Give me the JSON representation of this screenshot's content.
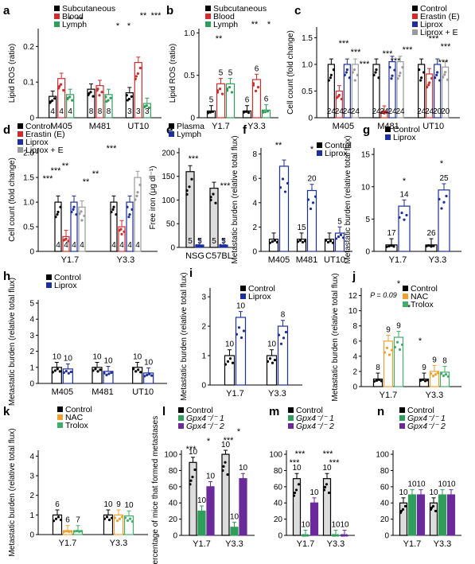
{
  "colors": {
    "black": "#000000",
    "red": "#d22b2b",
    "green": "#2f9e5a",
    "blue": "#1c2f9e",
    "gray": "#9a9a9a",
    "orange": "#f0a030",
    "lightgreen": "#3fae6a",
    "purple": "#6a2a9a",
    "lightfill": "#dddddd"
  },
  "chart_data": [
    {
      "panel": "a",
      "type": "bar",
      "ylabel": "Lipid ROS (ratio)",
      "yticks": [
        "0",
        "0.1",
        "0.2"
      ],
      "ylim": [
        0,
        0.25
      ],
      "categories": [
        "M405",
        "M481",
        "UT10"
      ],
      "series": [
        {
          "name": "Subcutaneous",
          "values": [
            0.06,
            0.08,
            0.07
          ],
          "n": [
            "4",
            "8",
            "3"
          ]
        },
        {
          "name": "Blood",
          "values": [
            0.11,
            0.09,
            0.155
          ],
          "n": [
            "4",
            "8",
            "3"
          ]
        },
        {
          "name": "Lymph",
          "values": [
            0.065,
            0.065,
            0.04
          ],
          "n": [
            "4",
            "8",
            "3"
          ]
        }
      ],
      "significance": [
        "*",
        "**",
        "*",
        "*",
        "**",
        "***"
      ]
    },
    {
      "panel": "b",
      "type": "bar",
      "ylabel": "Lipid ROS (ratio)",
      "yticks": [
        "0",
        "0.5",
        "1.0"
      ],
      "ylim": [
        0,
        1.05
      ],
      "categories": [
        "Y1.7",
        "Y3.3"
      ],
      "series": [
        {
          "name": "Subcutaneous",
          "values": [
            0.08,
            0.08
          ],
          "n": [
            "5",
            "6"
          ]
        },
        {
          "name": "Blood",
          "values": [
            0.4,
            0.45
          ],
          "n": [
            "5",
            "6"
          ]
        },
        {
          "name": "Lymph",
          "values": [
            0.4,
            0.09
          ],
          "n": [
            "5",
            "6"
          ]
        }
      ],
      "significance": [
        "**",
        "**",
        "*"
      ]
    },
    {
      "panel": "c",
      "type": "bar",
      "ylabel": "Cell count (fold change)",
      "yticks": [
        "0",
        "0.5",
        "1.0",
        "1.5"
      ],
      "ylim": [
        0,
        1.7
      ],
      "categories": [
        "M405",
        "M481",
        "UT10"
      ],
      "series": [
        {
          "name": "Control",
          "values": [
            1.0,
            1.0,
            1.0
          ],
          "n": [
            "24",
            "24",
            "24"
          ]
        },
        {
          "name": "Erastin (E)",
          "values": [
            0.5,
            0.12,
            0.82
          ],
          "n": [
            "24",
            "24",
            "24"
          ]
        },
        {
          "name": "Liprox",
          "values": [
            1.0,
            1.05,
            1.0
          ],
          "n": [
            "24",
            "24",
            "20"
          ]
        },
        {
          "name": "Liprox + E",
          "values": [
            1.0,
            1.05,
            0.95
          ],
          "n": [
            "24",
            "24",
            "20"
          ]
        }
      ],
      "significance": [
        "***",
        "***",
        "***",
        "***",
        "***",
        "***",
        "***",
        "***",
        "***"
      ]
    },
    {
      "panel": "d",
      "type": "bar",
      "ylabel": "Cell count (fold change)",
      "yticks": [
        "0",
        "0.5",
        "1.0",
        "1.5",
        "2.0"
      ],
      "ylim": [
        0,
        2.1
      ],
      "categories": [
        "Y1.7",
        "Y3.3"
      ],
      "series": [
        {
          "name": "Control",
          "values": [
            1.0,
            1.0
          ],
          "n": [
            "4",
            "4"
          ]
        },
        {
          "name": "Erastin (E)",
          "values": [
            0.3,
            0.5
          ],
          "n": [
            "4",
            "4"
          ]
        },
        {
          "name": "Liprox",
          "values": [
            1.0,
            1.0
          ],
          "n": [
            "4",
            "4"
          ]
        },
        {
          "name": "Liprox + E",
          "values": [
            0.9,
            1.5
          ],
          "n": [
            "4",
            "4"
          ]
        }
      ],
      "significance": [
        "***",
        "***",
        "**",
        "**",
        "**",
        "***"
      ]
    },
    {
      "panel": "e",
      "type": "bar",
      "ylabel": "Free iron (μg dl⁻¹)",
      "yticks": [
        "0",
        "50",
        "100",
        "150",
        "200"
      ],
      "ylim": [
        0,
        210
      ],
      "categories": [
        "NSG",
        "C57BL"
      ],
      "series": [
        {
          "name": "Plasma",
          "values": [
            160,
            125
          ],
          "n": [
            "5",
            "5"
          ]
        },
        {
          "name": "Lymph",
          "values": [
            5,
            5
          ],
          "n": [
            "5",
            "5"
          ]
        }
      ],
      "significance": [
        "***",
        "***"
      ]
    },
    {
      "panel": "f",
      "type": "bar",
      "ylabel": "Metastatic burden (relative total flux)",
      "yticks": [
        "0",
        "2",
        "4",
        "6",
        "8"
      ],
      "ylim": [
        0,
        8.5
      ],
      "categories": [
        "M405",
        "M481",
        "UT10"
      ],
      "series": [
        {
          "name": "Control",
          "values": [
            1.0,
            1.0,
            1.0
          ],
          "n": [
            "",
            "15",
            ""
          ]
        },
        {
          "name": "Liprox",
          "values": [
            7.0,
            5.0,
            1.5
          ],
          "n": [
            "",
            "20",
            "5"
          ]
        }
      ],
      "significance": [
        "**",
        "*"
      ]
    },
    {
      "panel": "g",
      "type": "bar",
      "ylabel": "Metastatic burden (relative total flux)",
      "yticks": [
        "0",
        "5",
        "10",
        "15"
      ],
      "ylim": [
        0,
        16
      ],
      "categories": [
        "Y1.7",
        "Y3.3"
      ],
      "series": [
        {
          "name": "Control",
          "values": [
            1.0,
            1.0
          ],
          "n": [
            "17",
            "26"
          ]
        },
        {
          "name": "Liprox",
          "values": [
            7.0,
            9.5
          ],
          "n": [
            "14",
            "25"
          ]
        }
      ],
      "significance": [
        "*",
        "*"
      ]
    },
    {
      "panel": "h",
      "type": "bar",
      "ylabel": "Metastatic burden (relative total flux)",
      "yticks": [
        "0",
        "1",
        "2",
        "3",
        "4",
        "5"
      ],
      "ylim": [
        0,
        5.2
      ],
      "categories": [
        "M405",
        "M481",
        "UT10"
      ],
      "series": [
        {
          "name": "Control",
          "values": [
            1.0,
            1.0,
            1.0
          ],
          "n": [
            "10",
            "10",
            "10"
          ]
        },
        {
          "name": "Liprox",
          "values": [
            0.9,
            0.75,
            0.65
          ],
          "n": [
            "10",
            "10",
            "10"
          ]
        }
      ]
    },
    {
      "panel": "i",
      "type": "bar",
      "ylabel": "Metastatic burden (relative total flux)",
      "yticks": [
        "0",
        "1",
        "2",
        "3"
      ],
      "ylim": [
        0,
        3.3
      ],
      "categories": [
        "Y1.7",
        "Y3.3"
      ],
      "series": [
        {
          "name": "Control",
          "values": [
            1.0,
            1.0
          ],
          "n": [
            "10",
            "10"
          ]
        },
        {
          "name": "Liprox",
          "values": [
            2.3,
            2.0
          ],
          "n": [
            "10",
            "8"
          ]
        }
      ]
    },
    {
      "panel": "j",
      "type": "bar",
      "ylabel": "Metastatic burden (relative total flux)",
      "yticks": [
        "0",
        "2",
        "4",
        "6",
        "8",
        "10",
        "12"
      ],
      "ylim": [
        0,
        13
      ],
      "categories": [
        "Y1.7",
        "Y3.3"
      ],
      "series": [
        {
          "name": "Control",
          "values": [
            1.0,
            1.0
          ],
          "n": [
            "8",
            "9"
          ]
        },
        {
          "name": "NAC",
          "values": [
            6.0,
            2.0
          ],
          "n": [
            "9",
            "9"
          ]
        },
        {
          "name": "Trolox",
          "values": [
            6.5,
            1.9
          ],
          "n": [
            "9",
            "8"
          ]
        }
      ],
      "significance": [
        "*",
        "P = 0.09",
        "*",
        "*"
      ]
    },
    {
      "panel": "k",
      "type": "bar",
      "ylabel": "Metastatic burden (relative total flux)",
      "yticks": [
        "0",
        "1",
        "2",
        "3",
        "4"
      ],
      "ylim": [
        0,
        4.3
      ],
      "categories": [
        "Y1.7",
        "Y3.3"
      ],
      "series": [
        {
          "name": "Control",
          "values": [
            1.0,
            1.0
          ],
          "n": [
            "6",
            "10"
          ]
        },
        {
          "name": "NAC",
          "values": [
            0.2,
            1.0
          ],
          "n": [
            "6",
            "9"
          ]
        },
        {
          "name": "Trolox",
          "values": [
            0.2,
            0.95
          ],
          "n": [
            "7",
            "10"
          ]
        }
      ]
    },
    {
      "panel": "l",
      "type": "bar",
      "ylabel": "Percentage of mice that formed metastases",
      "yticks": [
        "0",
        "20",
        "40",
        "60",
        "80",
        "100"
      ],
      "ylim": [
        0,
        105
      ],
      "categories": [
        "Y1.7",
        "Y3.3"
      ],
      "series": [
        {
          "name": "Control",
          "values": [
            90,
            100
          ],
          "n": [
            "10",
            "10"
          ]
        },
        {
          "name": "Gpx4⁻/⁻ 1",
          "values": [
            30,
            10
          ],
          "n": [
            "10",
            "10"
          ]
        },
        {
          "name": "Gpx4⁻/⁻ 2",
          "values": [
            60,
            70
          ],
          "n": [
            "10",
            "10"
          ]
        }
      ],
      "significance": [
        "***",
        "*",
        "***",
        "*"
      ]
    },
    {
      "panel": "m",
      "type": "bar",
      "yticks": [
        "0",
        "20",
        "40",
        "60",
        "80",
        "100"
      ],
      "ylim": [
        0,
        105
      ],
      "categories": [
        "Y1.7",
        "Y3.3"
      ],
      "series": [
        {
          "name": "Control",
          "values": [
            70,
            70
          ],
          "n": [
            "10",
            "10"
          ]
        },
        {
          "name": "Gpx4⁻/⁻ 1",
          "values": [
            0,
            0
          ],
          "n": [
            "10",
            "10"
          ]
        },
        {
          "name": "Gpx4⁻/⁻ 2",
          "values": [
            40,
            0
          ],
          "n": [
            "10",
            "10"
          ]
        }
      ],
      "significance": [
        "***",
        "***",
        "***",
        "***"
      ]
    },
    {
      "panel": "n",
      "type": "bar",
      "yticks": [
        "0",
        "20",
        "40",
        "60",
        "80",
        "100"
      ],
      "ylim": [
        0,
        105
      ],
      "categories": [
        "Y1.7",
        "Y3.3"
      ],
      "series": [
        {
          "name": "Control",
          "values": [
            40,
            40
          ],
          "n": [
            "10",
            "10"
          ]
        },
        {
          "name": "Gpx4⁻/⁻ 1",
          "values": [
            50,
            50
          ],
          "n": [
            "10",
            "10"
          ]
        },
        {
          "name": "Gpx4⁻/⁻ 2",
          "values": [
            50,
            50
          ],
          "n": [
            "10",
            "10"
          ]
        }
      ]
    }
  ]
}
